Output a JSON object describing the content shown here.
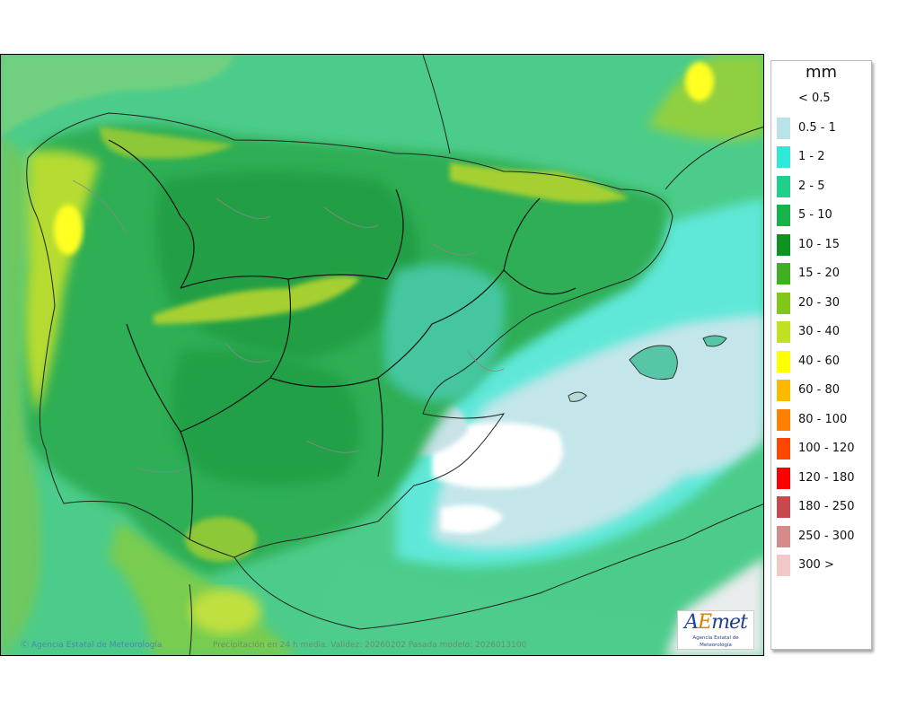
{
  "map": {
    "credit": "Agencia Estatal de Meteorología",
    "footer": "Precipitación en 24 h media. Validez: 20260202 Pasada modelo: 2026013100",
    "logo": {
      "text_a": "A",
      "text_e": "E",
      "text_rest": "met",
      "subtitle": "Agencia Estatal de Meteorología"
    }
  },
  "legend": {
    "unit": "mm",
    "items": [
      {
        "label": "< 0.5",
        "color": "#ffffff"
      },
      {
        "label": "0.5 - 1",
        "color": "#b9e3e8"
      },
      {
        "label": "1 - 2",
        "color": "#2ee8d8"
      },
      {
        "label": "2 - 5",
        "color": "#1fd08a"
      },
      {
        "label": "5 - 10",
        "color": "#16b24a"
      },
      {
        "label": "10 - 15",
        "color": "#0d9420"
      },
      {
        "label": "15 - 20",
        "color": "#40b020"
      },
      {
        "label": "20 - 30",
        "color": "#80c818"
      },
      {
        "label": "30 - 40",
        "color": "#c0e020"
      },
      {
        "label": "40 - 60",
        "color": "#ffff00"
      },
      {
        "label": "60 - 80",
        "color": "#ffb800"
      },
      {
        "label": "80 - 100",
        "color": "#ff7f00"
      },
      {
        "label": "100 - 120",
        "color": "#ff4500"
      },
      {
        "label": "120 - 180",
        "color": "#ff0000"
      },
      {
        "label": "180 - 250",
        "color": "#c8484e"
      },
      {
        "label": "250 - 300",
        "color": "#d88a8a"
      },
      {
        "label": "300 >",
        "color": "#f2c8c8"
      }
    ]
  }
}
